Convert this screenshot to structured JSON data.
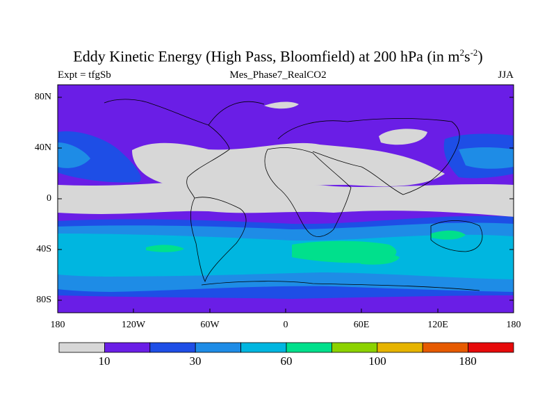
{
  "header": {
    "title_main": "Eddy Kinetic Energy (High Pass, Bloomfield) at 200 hPa (in m",
    "title_sup1": "2",
    "title_mid": "s",
    "title_sup2": "-2",
    "title_end": ")",
    "left_label": "Expt = tfgSb",
    "center_label": "Mes_Phase7_RealCO2",
    "right_label": "JJA"
  },
  "axes": {
    "y_ticks": [
      "80N",
      "40N",
      "0",
      "40S",
      "80S"
    ],
    "x_ticks": [
      "180",
      "120W",
      "60W",
      "0",
      "60E",
      "120E",
      "180"
    ]
  },
  "colorbar": {
    "colors": [
      "#d7d7d7",
      "#6a1ee6",
      "#1e4ee6",
      "#1e8ce6",
      "#00b6e0",
      "#00e08c",
      "#8cd200",
      "#e6b400",
      "#e65a00",
      "#e60a0a"
    ],
    "labels": [
      "10",
      "30",
      "60",
      "100",
      "180"
    ]
  },
  "map": {
    "lon_range": [
      -180,
      180
    ],
    "lat_range": [
      -90,
      90
    ],
    "field": "Eddy Kinetic Energy",
    "units": "m2s-2"
  }
}
